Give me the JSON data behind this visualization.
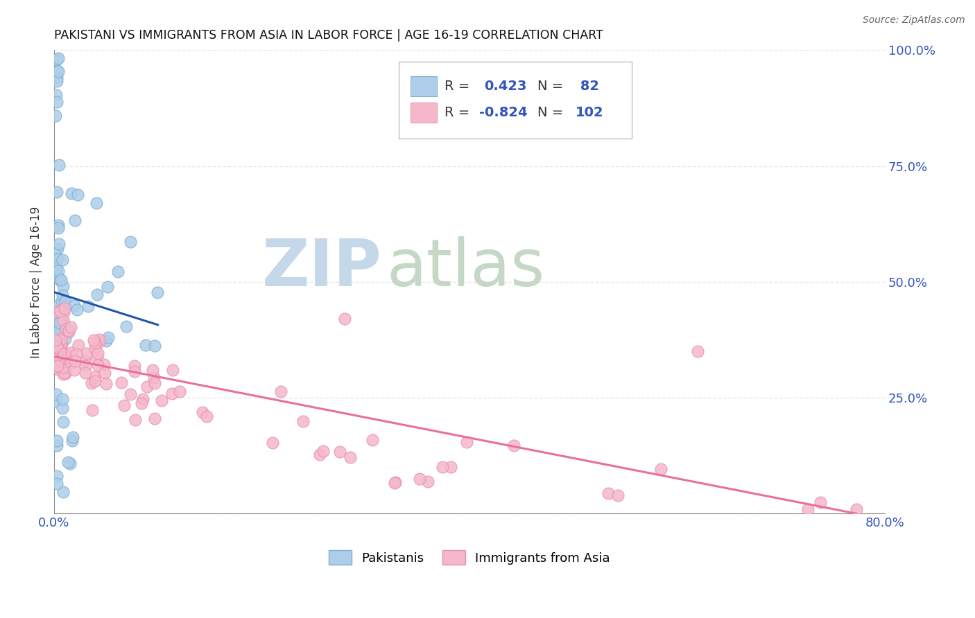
{
  "title": "PAKISTANI VS IMMIGRANTS FROM ASIA IN LABOR FORCE | AGE 16-19 CORRELATION CHART",
  "source": "Source: ZipAtlas.com",
  "ylabel": "In Labor Force | Age 16-19",
  "xlim": [
    0.0,
    0.8
  ],
  "ylim": [
    0.0,
    1.0
  ],
  "xticks": [
    0.0,
    0.1,
    0.2,
    0.3,
    0.4,
    0.5,
    0.6,
    0.7,
    0.8
  ],
  "xticklabels": [
    "0.0%",
    "",
    "",
    "",
    "",
    "",
    "",
    "",
    "80.0%"
  ],
  "yticks_right": [
    0.0,
    0.25,
    0.5,
    0.75,
    1.0
  ],
  "yticklabels_right": [
    "",
    "25.0%",
    "50.0%",
    "75.0%",
    "100.0%"
  ],
  "blue_color": "#aecde8",
  "blue_edge": "#7aafd4",
  "pink_color": "#f5b8cb",
  "pink_edge": "#e890ab",
  "blue_line_color": "#2255aa",
  "pink_line_color": "#e8709a",
  "tick_color": "#3355bb",
  "R_blue": 0.423,
  "N_blue": 82,
  "R_pink": -0.824,
  "N_pink": 102,
  "legend_label_blue": "Pakistanis",
  "legend_label_pink": "Immigrants from Asia",
  "grid_color": "#cccccc",
  "watermark_zip_color": "#c5d8ea",
  "watermark_atlas_color": "#c5d8c5"
}
